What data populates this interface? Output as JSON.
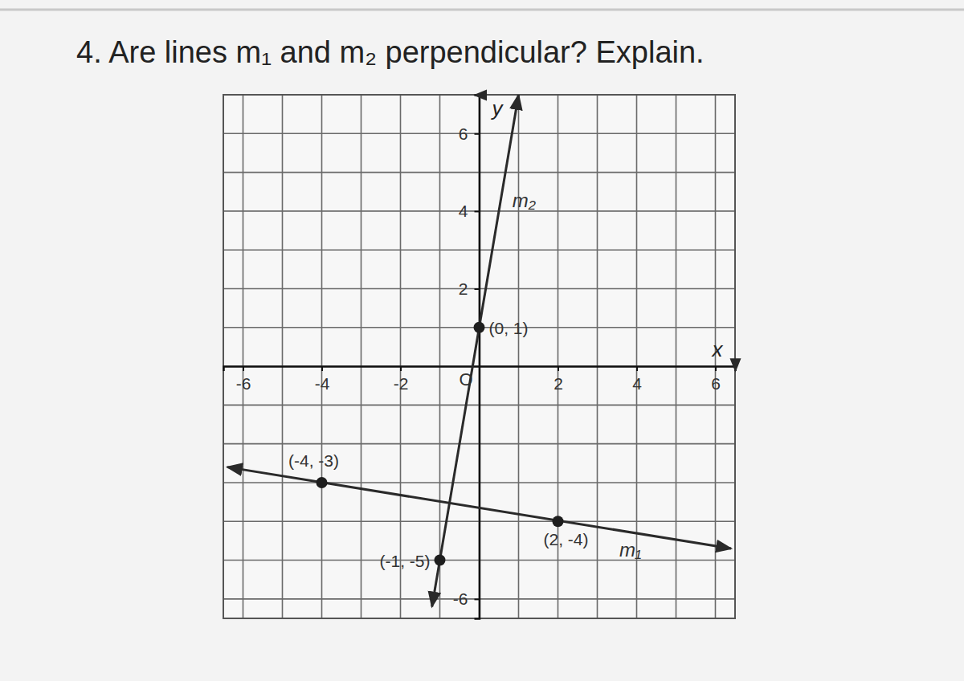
{
  "chart_data": {
    "type": "line",
    "title": "4. Are lines m₁ and m₂ perpendicular? Explain.",
    "x_label": "x",
    "y_label": "y",
    "origin_label": "O",
    "xlim": [
      -6.5,
      6.5
    ],
    "ylim": [
      -6.5,
      7
    ],
    "xticks": [
      -6,
      -4,
      -2,
      2,
      4,
      6
    ],
    "yticks": [
      -6,
      2,
      4,
      6
    ],
    "grid_x": [
      -6,
      -5,
      -4,
      -3,
      -2,
      -1,
      0,
      1,
      2,
      3,
      4,
      5,
      6
    ],
    "grid_y": [
      -6,
      -5,
      -4,
      -3,
      -2,
      -1,
      0,
      1,
      2,
      3,
      4,
      5,
      6,
      7
    ],
    "grid": true,
    "series": [
      {
        "name": "m₂",
        "x": [
          -1.2,
          1
        ],
        "values": [
          -6.2,
          7
        ],
        "color": "#2a2a2a",
        "line_style": "solid",
        "marker": "arrow"
      },
      {
        "name": "m₁",
        "x": [
          -6.4,
          6.4
        ],
        "values": [
          -2.6,
          -4.7
        ],
        "color": "#2a2a2a",
        "line_style": "solid",
        "marker": "arrow"
      }
    ],
    "points": [
      {
        "x": -4,
        "y": -3,
        "label": "(-4, -3)"
      },
      {
        "x": -1,
        "y": -5,
        "label": "(-1, -5)"
      },
      {
        "x": 0,
        "y": 1,
        "label": "(0, 1)"
      },
      {
        "x": 2,
        "y": -4,
        "label": "(2, -4)"
      }
    ]
  }
}
